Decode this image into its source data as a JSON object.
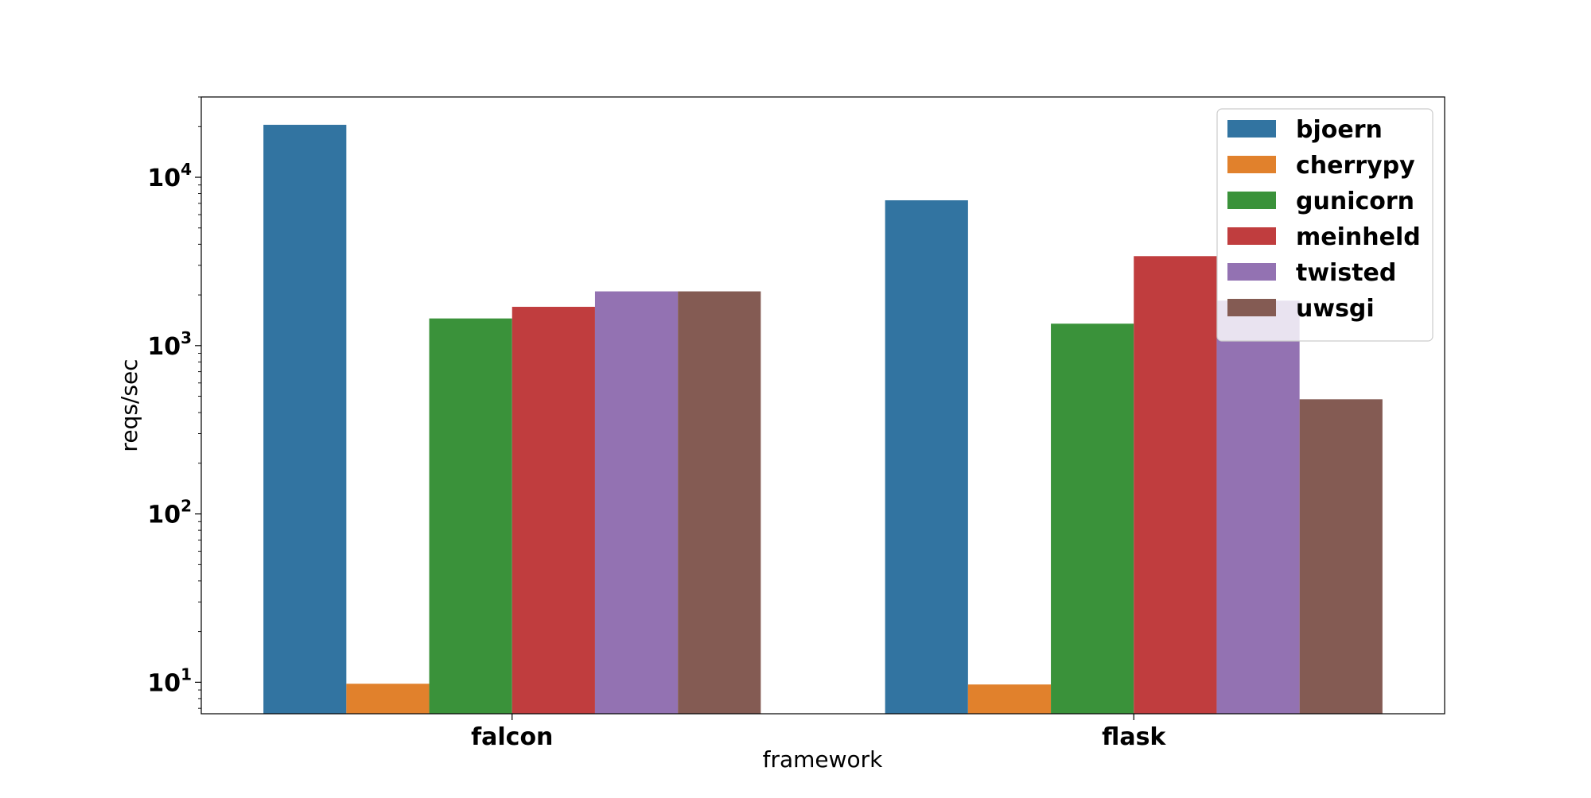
{
  "chart_data": {
    "type": "bar",
    "xlabel": "framework",
    "ylabel": "reqs/sec",
    "yscale": "log",
    "ylim": [
      6.5,
      30000
    ],
    "categories": [
      "falcon",
      "flask"
    ],
    "y_ticks": [
      10,
      100,
      1000,
      10000
    ],
    "y_tick_labels": [
      {
        "base": "10",
        "exp": "1"
      },
      {
        "base": "10",
        "exp": "2"
      },
      {
        "base": "10",
        "exp": "3"
      },
      {
        "base": "10",
        "exp": "4"
      }
    ],
    "legend_position": "top-right",
    "series": [
      {
        "name": "bjoern",
        "color": "#3274a1",
        "values": [
          20500,
          7300
        ]
      },
      {
        "name": "cherrypy",
        "color": "#e1812c",
        "values": [
          9.8,
          9.7
        ]
      },
      {
        "name": "gunicorn",
        "color": "#3a923a",
        "values": [
          1450,
          1350
        ]
      },
      {
        "name": "meinheld",
        "color": "#c03d3e",
        "values": [
          1700,
          3400
        ]
      },
      {
        "name": "twisted",
        "color": "#9372b2",
        "values": [
          2100,
          1850
        ]
      },
      {
        "name": "uwsgi",
        "color": "#845b53",
        "values": [
          2100,
          480
        ]
      }
    ]
  }
}
